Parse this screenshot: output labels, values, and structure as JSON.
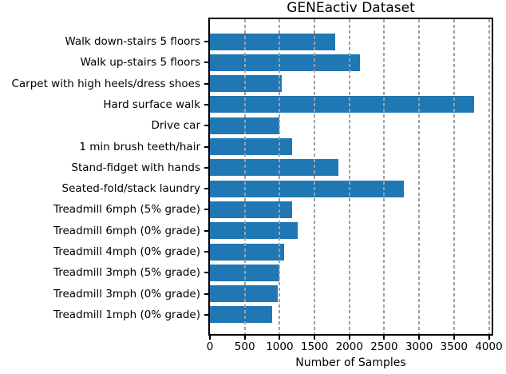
{
  "chart_data": {
    "type": "bar",
    "orientation": "horizontal",
    "title": "GENEactiv Dataset",
    "xlabel": "Number of Samples",
    "ylabel": "",
    "categories": [
      "Walk down-stairs 5 floors",
      "Walk up-stairs 5 floors",
      "Carpet with high heels/dress shoes",
      "Hard surface walk",
      "Drive car",
      "1 min brush teeth/hair",
      "Stand-fidget with hands",
      "Seated-fold/stack laundry",
      "Treadmill 6mph (5% grade)",
      "Treadmill 6mph (0% grade)",
      "Treadmill 4mph (0% grade)",
      "Treadmill 3mph (5% grade)",
      "Treadmill 3mph (0% grade)",
      "Treadmill 1mph (0% grade)"
    ],
    "values": [
      1800,
      2150,
      1030,
      3790,
      1000,
      1180,
      1840,
      2780,
      1180,
      1260,
      1060,
      990,
      970,
      890
    ],
    "xticks": [
      0,
      500,
      1000,
      1500,
      2000,
      2500,
      3000,
      3500,
      4000
    ],
    "xlim": [
      0,
      4040
    ],
    "bar_color": "#1f77b4",
    "grid": {
      "axis": "x",
      "style": "dashed",
      "color": "#a0a0a0",
      "above_bars": true
    },
    "legend": "none"
  }
}
